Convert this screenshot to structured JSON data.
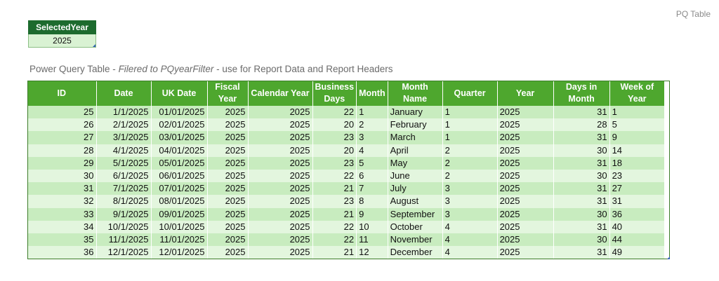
{
  "sheet_label": "PQ Table",
  "selected_year": {
    "header": "SelectedYear",
    "value": "2025"
  },
  "caption": {
    "prefix": "Power Query Table - ",
    "italic": "Filered to PQyearFilter",
    "suffix": "  - use for Report Data and Report Headers"
  },
  "table": {
    "headers": [
      "ID",
      "Date",
      "UK Date",
      "Fiscal\nYear",
      "Calendar Year",
      "Business\nDays",
      "Month",
      "Month\nName",
      "Quarter",
      "Year",
      "Days in\nMonth",
      "Week of\nYear"
    ],
    "rows": [
      [
        "25",
        "1/1/2025",
        "01/01/2025",
        "2025",
        "2025",
        "22",
        "1",
        "January",
        "1",
        "2025",
        "31",
        "1"
      ],
      [
        "26",
        "2/1/2025",
        "02/01/2025",
        "2025",
        "2025",
        "20",
        "2",
        "February",
        "1",
        "2025",
        "28",
        "5"
      ],
      [
        "27",
        "3/1/2025",
        "03/01/2025",
        "2025",
        "2025",
        "23",
        "3",
        "March",
        "1",
        "2025",
        "31",
        "9"
      ],
      [
        "28",
        "4/1/2025",
        "04/01/2025",
        "2025",
        "2025",
        "20",
        "4",
        "April",
        "2",
        "2025",
        "30",
        "14"
      ],
      [
        "29",
        "5/1/2025",
        "05/01/2025",
        "2025",
        "2025",
        "23",
        "5",
        "May",
        "2",
        "2025",
        "31",
        "18"
      ],
      [
        "30",
        "6/1/2025",
        "06/01/2025",
        "2025",
        "2025",
        "22",
        "6",
        "June",
        "2",
        "2025",
        "30",
        "23"
      ],
      [
        "31",
        "7/1/2025",
        "07/01/2025",
        "2025",
        "2025",
        "21",
        "7",
        "July",
        "3",
        "2025",
        "31",
        "27"
      ],
      [
        "32",
        "8/1/2025",
        "08/01/2025",
        "2025",
        "2025",
        "23",
        "8",
        "August",
        "3",
        "2025",
        "31",
        "31"
      ],
      [
        "33",
        "9/1/2025",
        "09/01/2025",
        "2025",
        "2025",
        "21",
        "9",
        "September",
        "3",
        "2025",
        "30",
        "36"
      ],
      [
        "34",
        "10/1/2025",
        "10/01/2025",
        "2025",
        "2025",
        "22",
        "10",
        "October",
        "4",
        "2025",
        "31",
        "40"
      ],
      [
        "35",
        "11/1/2025",
        "11/01/2025",
        "2025",
        "2025",
        "22",
        "11",
        "November",
        "4",
        "2025",
        "30",
        "44"
      ],
      [
        "36",
        "12/1/2025",
        "12/01/2025",
        "2025",
        "2025",
        "21",
        "12",
        "December",
        "4",
        "2025",
        "31",
        "49"
      ]
    ]
  },
  "colors": {
    "header_green": "#4ea72e",
    "dark_green": "#1d6b2e",
    "band_light": "#e3f6de",
    "band_dark": "#c8ecbf"
  }
}
